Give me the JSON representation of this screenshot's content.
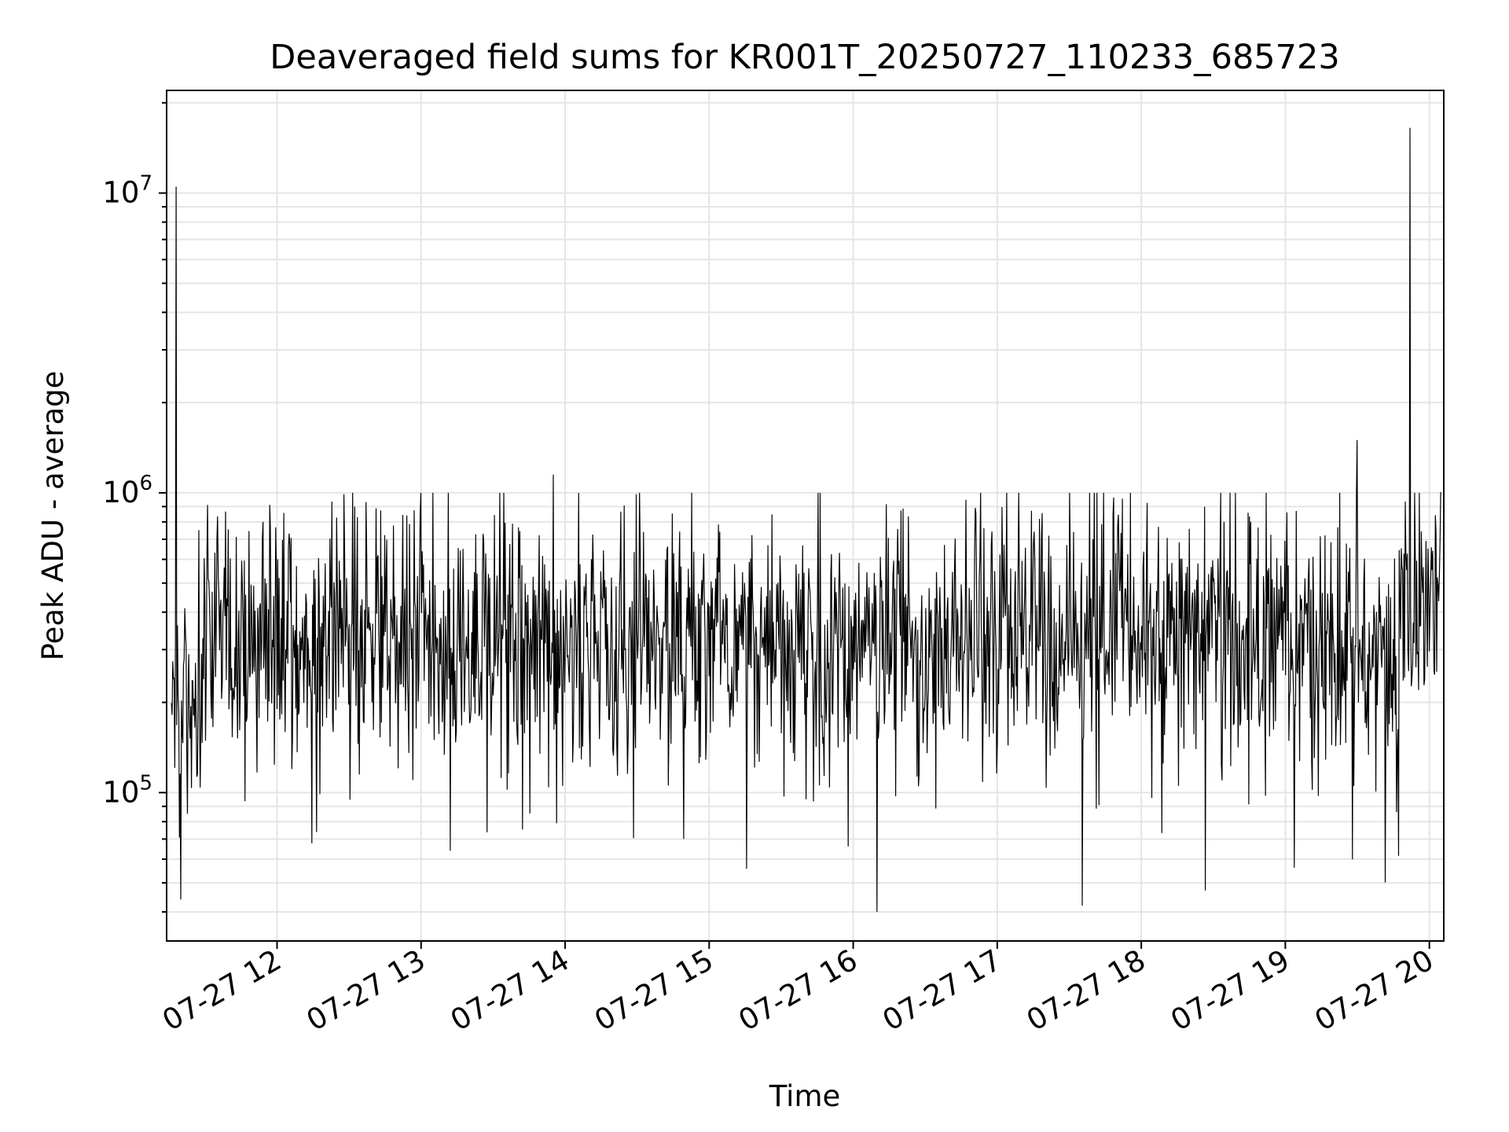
{
  "chart_data": {
    "type": "line",
    "title": "Deaveraged field sums for KR001T_20250727_110233_685723",
    "xlabel": "Time",
    "ylabel": "Peak ADU - average",
    "yscale": "log",
    "grid": true,
    "line_color": "#000000",
    "grid_color": "#e5e5e5",
    "xlim": [
      "2025-07-27 11:14",
      "2025-07-27 20:06"
    ],
    "ylim": [
      32000,
      22000000
    ],
    "x_tick_labels": [
      "07-27 12",
      "07-27 13",
      "07-27 14",
      "07-27 15",
      "07-27 16",
      "07-27 17",
      "07-27 18",
      "07-27 19",
      "07-27 20"
    ],
    "y_tick_labels": [
      {
        "base": "10",
        "exp": "5",
        "value": 100000
      },
      {
        "base": "10",
        "exp": "6",
        "value": 1000000
      },
      {
        "base": "10",
        "exp": "7",
        "value": 10000000
      }
    ],
    "notable_points": [
      {
        "x": "2025-07-27 11:18",
        "y": 10500000
      },
      {
        "x": "2025-07-27 11:20",
        "y": 44000
      },
      {
        "x": "2025-07-27 13:55",
        "y": 1150000
      },
      {
        "x": "2025-07-27 16:10",
        "y": 40000
      },
      {
        "x": "2025-07-27 19:30",
        "y": 1500000
      },
      {
        "x": "2025-07-27 19:52",
        "y": 16500000
      }
    ],
    "series_summary": "Noisy trace, typically between about 1e5 and 9e5, median near 3.5e5, with two large spikes near 1e7 and 1.6e7."
  }
}
